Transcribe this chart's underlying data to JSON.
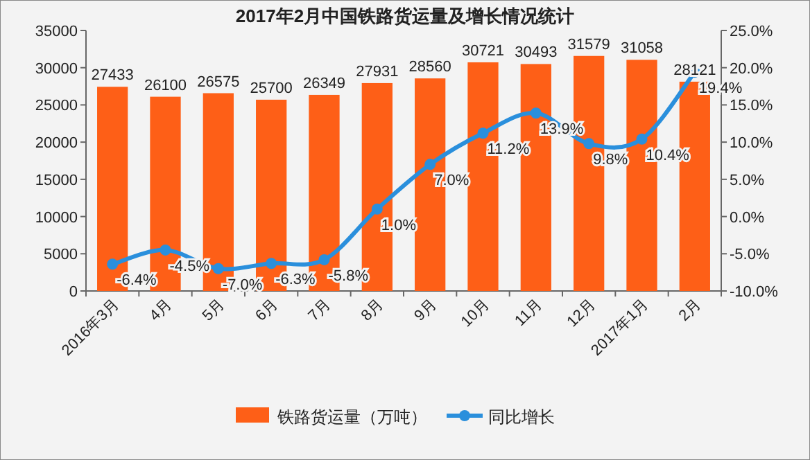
{
  "chart_data": {
    "type": "bar",
    "title": "2017年2月中国铁路货运量及增长情况统计",
    "categories": [
      "2016年3月",
      "4月",
      "5月",
      "6月",
      "7月",
      "8月",
      "9月",
      "10月",
      "11月",
      "12月",
      "2017年1月",
      "2月"
    ],
    "series": [
      {
        "name": "铁路货运量（万吨）",
        "color": "#fe5f17",
        "values": [
          27433,
          26100,
          26575,
          25700,
          26349,
          27931,
          28560,
          30721,
          30493,
          31579,
          31058,
          28121
        ],
        "value_labels": [
          "27433",
          "26100",
          "26575",
          "25700",
          "26349",
          "27931",
          "28560",
          "30721",
          "30493",
          "31579",
          "31058",
          "28121"
        ]
      },
      {
        "name": "同比增长",
        "type": "line",
        "axis": "y2",
        "color": "#2a8fdc",
        "values": [
          -6.4,
          -4.5,
          -7.0,
          -6.3,
          -5.8,
          1.0,
          7.0,
          11.2,
          13.9,
          9.8,
          10.4,
          19.4
        ],
        "value_labels": [
          "-6.4%",
          "-4.5%",
          "-7.0%",
          "-6.3%",
          "-5.8%",
          "1.0%",
          "7.0%",
          "11.2%",
          "13.9%",
          "9.8%",
          "10.4%",
          "19.4%"
        ]
      }
    ],
    "ylim": [
      0,
      35000
    ],
    "yticks": [
      0,
      5000,
      10000,
      15000,
      20000,
      25000,
      30000,
      35000
    ],
    "y2lim": [
      -10,
      25
    ],
    "y2ticks": [
      {
        "value": -10,
        "label": "-10.0%"
      },
      {
        "value": -5,
        "label": "-5.0%"
      },
      {
        "value": 0,
        "label": "0.0%"
      },
      {
        "value": 5,
        "label": "5.0%"
      },
      {
        "value": 10,
        "label": "10.0%"
      },
      {
        "value": 15,
        "label": "15.0%"
      },
      {
        "value": 20,
        "label": "20.0%"
      },
      {
        "value": 25,
        "label": "25.0%"
      }
    ],
    "legend": "bottom",
    "marker": "circle"
  }
}
